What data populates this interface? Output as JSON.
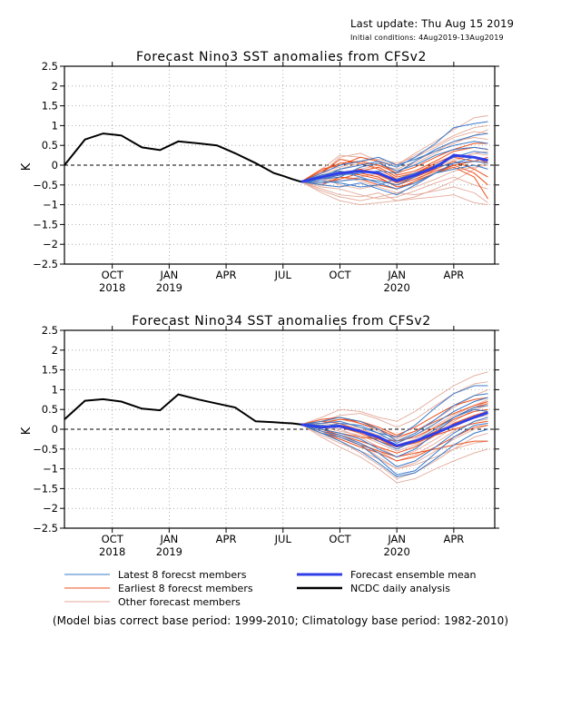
{
  "header": {
    "last_update": "Last update: Thu Aug 15 2019",
    "initial_conditions": "Initial conditions: 4Aug2019-13Aug2019"
  },
  "footnote": "(Model bias correct base period: 1999-2010; Climatology base period: 1982-2010)",
  "colors": {
    "analysis": "#000000",
    "ensemble_mean": "#2f3fe8",
    "latest_members": "#3a78c8",
    "earliest_members": "#ec4f1c",
    "other_members": "#e3aa9a",
    "grid": "#9a9a9a"
  },
  "legend": [
    {
      "label": "Latest 8 forecst members",
      "color": "#3a78c8",
      "width": 1
    },
    {
      "label": "Earliest 8 forecst members",
      "color": "#ec4f1c",
      "width": 1
    },
    {
      "label": "Other forecast members",
      "color": "#e3aa9a",
      "width": 1
    },
    {
      "label": "Forecast ensemble mean",
      "color": "#2f3fe8",
      "width": 3
    },
    {
      "label": "NCDC daily analysis",
      "color": "#000000",
      "width": 2.5
    }
  ],
  "chart_data": [
    {
      "type": "line",
      "title": "Forecast Nino3 SST anomalies from CFSv2",
      "ylabel": "K",
      "ylim": [
        -2.5,
        2.5
      ],
      "yticks": [
        2.5,
        2,
        1.5,
        1,
        0.5,
        0,
        -0.5,
        -1,
        -1.5,
        -2,
        -2.5
      ],
      "xlim": [
        2018.58,
        2020.47
      ],
      "xticks": [
        {
          "x": 2018.79,
          "month": "OCT",
          "year": "2018"
        },
        {
          "x": 2019.04,
          "month": "JAN",
          "year": "2019"
        },
        {
          "x": 2019.29,
          "month": "APR",
          "year": ""
        },
        {
          "x": 2019.54,
          "month": "JUL",
          "year": ""
        },
        {
          "x": 2019.79,
          "month": "OCT",
          "year": ""
        },
        {
          "x": 2020.04,
          "month": "JAN",
          "year": "2020"
        },
        {
          "x": 2020.29,
          "month": "APR",
          "year": ""
        }
      ],
      "grid": true,
      "analysis": {
        "x": [
          2018.58,
          2018.67,
          2018.75,
          2018.83,
          2018.92,
          2019.0,
          2019.08,
          2019.17,
          2019.25,
          2019.33,
          2019.42,
          2019.5,
          2019.54,
          2019.58,
          2019.62
        ],
        "y": [
          0.0,
          0.65,
          0.8,
          0.75,
          0.45,
          0.38,
          0.6,
          0.55,
          0.5,
          0.3,
          0.05,
          -0.2,
          -0.27,
          -0.35,
          -0.42
        ]
      },
      "ensemble_mean": {
        "x": [
          2019.62,
          2019.71,
          2019.79,
          2019.88,
          2019.96,
          2020.04,
          2020.12,
          2020.21,
          2020.29,
          2020.38,
          2020.44
        ],
        "y": [
          -0.42,
          -0.3,
          -0.2,
          -0.15,
          -0.2,
          -0.4,
          -0.25,
          -0.05,
          0.25,
          0.2,
          0.12
        ]
      },
      "members": {
        "x": [
          2019.62,
          2019.71,
          2019.79,
          2019.88,
          2019.96,
          2020.04,
          2020.12,
          2020.21,
          2020.29,
          2020.38,
          2020.44
        ],
        "latest": [
          [
            -0.42,
            -0.3,
            -0.1,
            0.0,
            0.1,
            -0.05,
            0.2,
            0.55,
            0.95,
            1.05,
            1.1
          ],
          [
            -0.42,
            -0.35,
            -0.25,
            -0.2,
            -0.15,
            -0.2,
            0.1,
            0.4,
            0.6,
            0.75,
            0.8
          ],
          [
            -0.42,
            -0.2,
            0.0,
            0.1,
            0.2,
            0.0,
            0.15,
            0.35,
            0.5,
            0.6,
            0.55
          ],
          [
            -0.42,
            -0.45,
            -0.4,
            -0.35,
            -0.4,
            -0.5,
            -0.3,
            0.0,
            0.2,
            0.35,
            0.3
          ],
          [
            -0.42,
            -0.5,
            -0.55,
            -0.45,
            -0.6,
            -0.75,
            -0.5,
            -0.2,
            0.05,
            0.2,
            0.15
          ],
          [
            -0.42,
            -0.25,
            -0.15,
            -0.3,
            -0.45,
            -0.6,
            -0.45,
            -0.2,
            -0.1,
            0.0,
            -0.1
          ],
          [
            -0.42,
            -0.35,
            -0.3,
            -0.05,
            0.05,
            -0.15,
            0.0,
            0.25,
            0.4,
            0.45,
            0.4
          ],
          [
            -0.42,
            -0.4,
            -0.45,
            -0.55,
            -0.5,
            -0.35,
            -0.2,
            -0.05,
            0.05,
            0.1,
            0.05
          ]
        ],
        "earliest": [
          [
            -0.42,
            -0.2,
            0.15,
            0.05,
            -0.1,
            -0.35,
            -0.2,
            0.05,
            0.25,
            0.2,
            0.05
          ],
          [
            -0.42,
            -0.3,
            -0.2,
            -0.1,
            -0.25,
            -0.45,
            -0.3,
            -0.1,
            0.1,
            -0.1,
            -0.3
          ],
          [
            -0.42,
            -0.1,
            0.0,
            0.2,
            0.1,
            -0.25,
            -0.15,
            0.1,
            0.35,
            0.45,
            0.4
          ],
          [
            -0.42,
            -0.5,
            -0.3,
            -0.35,
            -0.5,
            -0.6,
            -0.4,
            -0.2,
            0.0,
            0.1,
            0.05
          ],
          [
            -0.42,
            -0.25,
            -0.15,
            -0.25,
            -0.35,
            -0.5,
            -0.35,
            -0.15,
            0.0,
            -0.2,
            -0.5
          ],
          [
            -0.42,
            -0.45,
            -0.35,
            -0.2,
            -0.3,
            -0.55,
            -0.45,
            -0.2,
            -0.05,
            -0.3,
            -0.85
          ],
          [
            -0.42,
            -0.15,
            0.05,
            0.1,
            0.0,
            -0.2,
            -0.05,
            0.2,
            0.4,
            0.55,
            0.55
          ],
          [
            -0.42,
            -0.35,
            -0.25,
            -0.15,
            -0.05,
            -0.3,
            -0.2,
            0.0,
            0.2,
            0.1,
            0.2
          ]
        ],
        "other": [
          [
            -0.42,
            -0.2,
            0.2,
            0.3,
            0.1,
            0.0,
            0.3,
            0.6,
            0.9,
            1.2,
            1.25
          ],
          [
            -0.42,
            -0.6,
            -0.75,
            -0.8,
            -0.7,
            -0.9,
            -0.8,
            -0.6,
            -0.4,
            -0.1,
            0.1
          ],
          [
            -0.42,
            -0.7,
            -0.9,
            -1.0,
            -0.95,
            -0.9,
            -0.85,
            -0.8,
            -0.75,
            -0.95,
            -1.0
          ],
          [
            -0.42,
            -0.1,
            0.25,
            0.2,
            0.1,
            0.0,
            0.25,
            0.5,
            0.75,
            0.95,
            1.0
          ],
          [
            -0.42,
            -0.3,
            -0.5,
            -0.6,
            -0.5,
            -0.6,
            -0.4,
            -0.1,
            0.1,
            0.3,
            0.35
          ],
          [
            -0.42,
            -0.2,
            -0.1,
            0.05,
            0.0,
            -0.1,
            0.1,
            0.35,
            0.6,
            0.7,
            0.65
          ],
          [
            -0.42,
            -0.55,
            -0.6,
            -0.75,
            -0.85,
            -0.8,
            -0.65,
            -0.45,
            -0.3,
            -0.5,
            -0.6
          ],
          [
            -0.42,
            -0.4,
            -0.3,
            -0.4,
            -0.55,
            -0.7,
            -0.55,
            -0.35,
            -0.15,
            -0.05,
            0.0
          ],
          [
            -0.42,
            -0.15,
            -0.05,
            0.1,
            0.15,
            0.05,
            0.2,
            0.45,
            0.7,
            0.85,
            0.8
          ],
          [
            -0.42,
            -0.35,
            -0.4,
            -0.3,
            -0.2,
            -0.35,
            -0.25,
            -0.05,
            0.15,
            0.3,
            0.25
          ],
          [
            -0.42,
            -0.65,
            -0.8,
            -0.9,
            -0.8,
            -0.7,
            -0.75,
            -0.65,
            -0.55,
            -0.7,
            -0.95
          ],
          [
            -0.42,
            -0.25,
            -0.2,
            -0.1,
            0.0,
            -0.15,
            0.05,
            0.3,
            0.55,
            0.75,
            0.9
          ]
        ]
      }
    },
    {
      "type": "line",
      "title": "Forecast Nino34 SST anomalies from CFSv2",
      "ylabel": "K",
      "ylim": [
        -2.5,
        2.5
      ],
      "yticks": [
        2.5,
        2,
        1.5,
        1,
        0.5,
        0,
        -0.5,
        -1,
        -1.5,
        -2,
        -2.5
      ],
      "xlim": [
        2018.58,
        2020.47
      ],
      "xticks": [
        {
          "x": 2018.79,
          "month": "OCT",
          "year": "2018"
        },
        {
          "x": 2019.04,
          "month": "JAN",
          "year": "2019"
        },
        {
          "x": 2019.29,
          "month": "APR",
          "year": ""
        },
        {
          "x": 2019.54,
          "month": "JUL",
          "year": ""
        },
        {
          "x": 2019.79,
          "month": "OCT",
          "year": ""
        },
        {
          "x": 2020.04,
          "month": "JAN",
          "year": "2020"
        },
        {
          "x": 2020.29,
          "month": "APR",
          "year": ""
        }
      ],
      "grid": true,
      "analysis": {
        "x": [
          2018.58,
          2018.67,
          2018.75,
          2018.83,
          2018.92,
          2019.0,
          2019.08,
          2019.17,
          2019.25,
          2019.33,
          2019.42,
          2019.5,
          2019.54,
          2019.58,
          2019.62
        ],
        "y": [
          0.25,
          0.72,
          0.76,
          0.7,
          0.52,
          0.48,
          0.88,
          0.75,
          0.65,
          0.55,
          0.2,
          0.18,
          0.16,
          0.15,
          0.12
        ]
      },
      "ensemble_mean": {
        "x": [
          2019.62,
          2019.71,
          2019.79,
          2019.88,
          2019.96,
          2020.04,
          2020.12,
          2020.21,
          2020.29,
          2020.38,
          2020.44
        ],
        "y": [
          0.12,
          0.05,
          0.08,
          -0.05,
          -0.2,
          -0.42,
          -0.3,
          -0.1,
          0.1,
          0.3,
          0.42
        ]
      },
      "members": {
        "x": [
          2019.62,
          2019.71,
          2019.79,
          2019.88,
          2019.96,
          2020.04,
          2020.12,
          2020.21,
          2020.29,
          2020.38,
          2020.44
        ],
        "latest": [
          [
            0.12,
            0.05,
            0.15,
            0.1,
            -0.1,
            -0.2,
            0.1,
            0.55,
            0.9,
            1.1,
            1.1
          ],
          [
            0.12,
            -0.1,
            -0.2,
            -0.4,
            -0.75,
            -1.15,
            -1.05,
            -0.6,
            -0.2,
            0.1,
            0.15
          ],
          [
            0.12,
            0.2,
            0.3,
            0.2,
            0.0,
            -0.3,
            -0.1,
            0.25,
            0.6,
            0.85,
            0.9
          ],
          [
            0.12,
            0.0,
            -0.1,
            -0.25,
            -0.5,
            -0.7,
            -0.5,
            -0.1,
            0.3,
            0.55,
            0.6
          ],
          [
            0.12,
            -0.05,
            -0.15,
            -0.35,
            -0.6,
            -0.95,
            -0.8,
            -0.45,
            -0.1,
            0.2,
            0.3
          ],
          [
            0.12,
            0.1,
            0.05,
            -0.05,
            -0.3,
            -0.5,
            -0.3,
            0.0,
            0.3,
            0.5,
            0.45
          ],
          [
            0.12,
            0.15,
            0.2,
            0.05,
            -0.1,
            -0.35,
            -0.15,
            0.15,
            0.45,
            0.7,
            0.8
          ],
          [
            0.12,
            -0.1,
            -0.3,
            -0.55,
            -0.85,
            -1.2,
            -1.1,
            -0.75,
            -0.4,
            -0.1,
            0.0
          ]
        ],
        "earliest": [
          [
            0.12,
            0.15,
            0.25,
            0.2,
            0.05,
            -0.15,
            0.05,
            0.35,
            0.6,
            0.75,
            0.8
          ],
          [
            0.12,
            0.0,
            -0.15,
            -0.3,
            -0.45,
            -0.6,
            -0.45,
            -0.15,
            0.15,
            0.35,
            0.45
          ],
          [
            0.12,
            0.2,
            0.15,
            -0.05,
            -0.25,
            -0.45,
            -0.3,
            -0.05,
            0.25,
            0.45,
            0.5
          ],
          [
            0.12,
            -0.05,
            -0.2,
            -0.4,
            -0.55,
            -0.7,
            -0.6,
            -0.5,
            -0.4,
            -0.3,
            -0.3
          ],
          [
            0.12,
            0.1,
            0.05,
            -0.1,
            -0.3,
            -0.45,
            -0.35,
            -0.15,
            0.0,
            0.15,
            0.2
          ],
          [
            0.12,
            0.0,
            -0.1,
            -0.2,
            -0.25,
            -0.3,
            -0.2,
            0.05,
            0.3,
            0.55,
            0.65
          ],
          [
            0.12,
            0.25,
            0.3,
            0.15,
            0.0,
            -0.2,
            -0.05,
            0.2,
            0.4,
            0.6,
            0.7
          ],
          [
            0.12,
            -0.1,
            -0.25,
            -0.45,
            -0.6,
            -0.8,
            -0.7,
            -0.45,
            -0.2,
            0.05,
            0.1
          ]
        ],
        "other": [
          [
            0.12,
            0.3,
            0.5,
            0.45,
            0.3,
            0.2,
            0.45,
            0.8,
            1.1,
            1.35,
            1.45
          ],
          [
            0.12,
            -0.2,
            -0.45,
            -0.7,
            -1.0,
            -1.35,
            -1.25,
            -1.0,
            -0.8,
            -0.6,
            -0.5
          ],
          [
            0.12,
            0.1,
            0.0,
            -0.2,
            -0.45,
            -0.7,
            -0.55,
            -0.25,
            0.05,
            0.3,
            0.35
          ],
          [
            0.12,
            0.2,
            0.35,
            0.4,
            0.25,
            0.05,
            0.25,
            0.6,
            0.9,
            1.15,
            1.2
          ],
          [
            0.12,
            -0.15,
            -0.35,
            -0.55,
            -0.75,
            -1.0,
            -0.9,
            -0.7,
            -0.5,
            -0.35,
            -0.3
          ],
          [
            0.12,
            0.05,
            -0.05,
            -0.15,
            -0.35,
            -0.55,
            -0.4,
            -0.1,
            0.2,
            0.5,
            0.6
          ],
          [
            0.12,
            0.0,
            -0.2,
            -0.4,
            -0.7,
            -1.0,
            -0.85,
            -0.55,
            -0.25,
            0.0,
            0.1
          ],
          [
            0.12,
            0.15,
            0.1,
            0.0,
            -0.15,
            -0.3,
            -0.15,
            0.1,
            0.35,
            0.6,
            0.75
          ],
          [
            0.12,
            -0.05,
            -0.3,
            -0.6,
            -0.9,
            -1.25,
            -1.1,
            -0.8,
            -0.5,
            -0.2,
            -0.1
          ],
          [
            0.12,
            0.2,
            0.25,
            0.15,
            -0.05,
            -0.25,
            -0.05,
            0.25,
            0.55,
            0.85,
            1.0
          ],
          [
            0.12,
            0.05,
            0.1,
            0.05,
            -0.2,
            -0.4,
            -0.25,
            0.05,
            0.3,
            0.55,
            0.7
          ],
          [
            0.12,
            -0.1,
            -0.2,
            -0.35,
            -0.55,
            -0.8,
            -0.65,
            -0.35,
            -0.05,
            0.2,
            0.25
          ]
        ]
      }
    }
  ]
}
